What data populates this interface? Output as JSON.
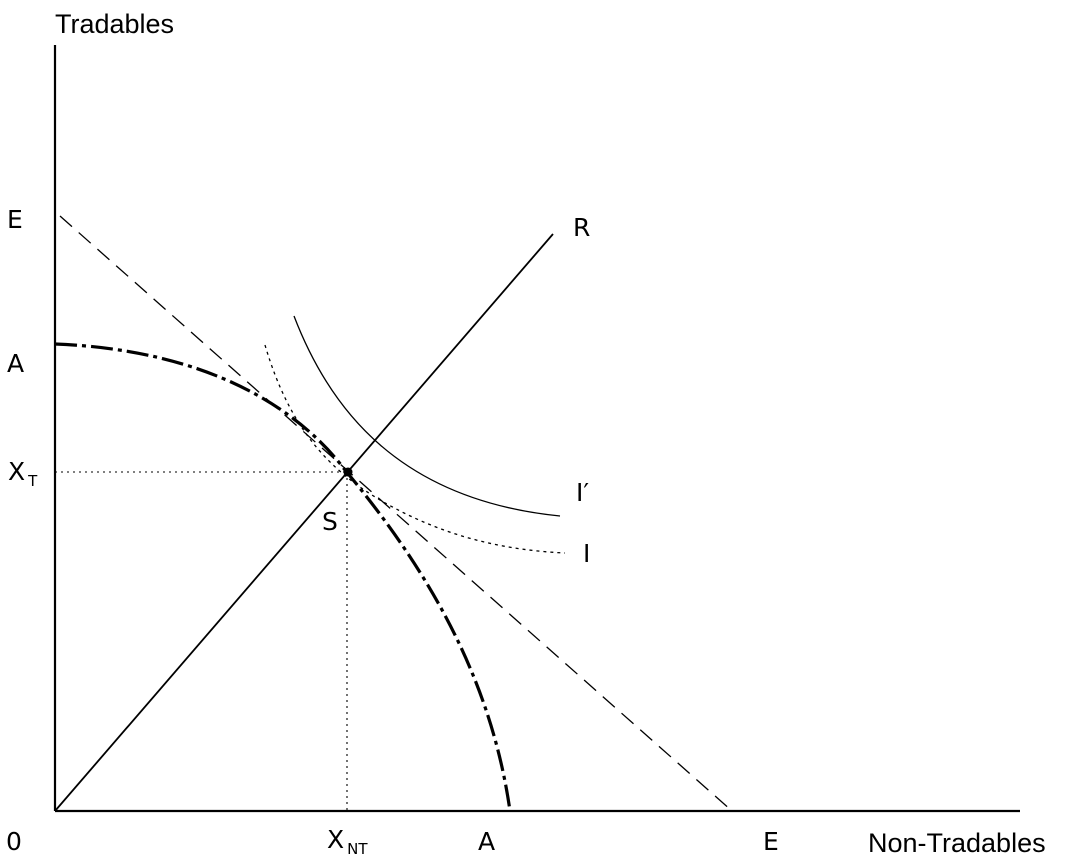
{
  "axes": {
    "y_title": "Tradables",
    "x_title": "Non-Tradables",
    "origin": "0"
  },
  "labels": {
    "E_y": "E",
    "A_y": "A",
    "X_T_main": "X",
    "X_T_sub": "T",
    "X_NT_main": "X",
    "X_NT_sub": "NT",
    "A_x": "A",
    "E_x": "E",
    "R": "R",
    "S": "S",
    "I_prime": "I′",
    "I": "I"
  },
  "colors": {
    "ink": "#000000",
    "background": "#ffffff"
  }
}
